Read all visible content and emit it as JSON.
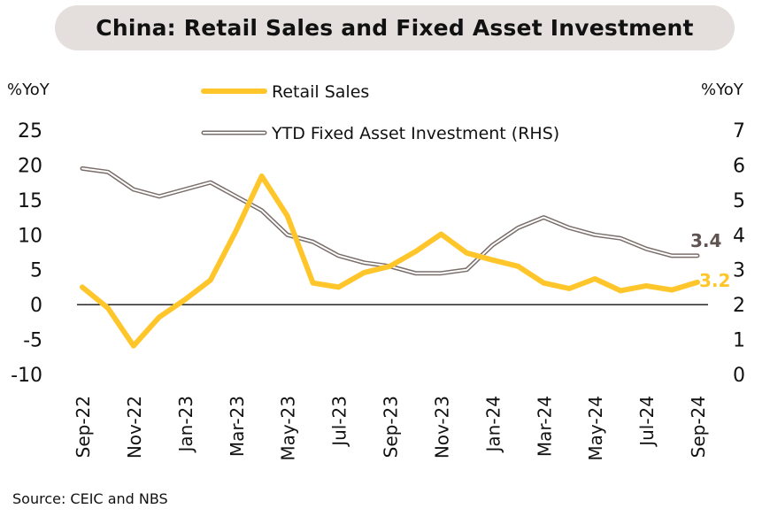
{
  "title": "China: Retail Sales and Fixed Asset Investment",
  "source": "Source: CEIC and NBS",
  "chart_data": {
    "type": "line",
    "left_axis": {
      "unit": "%YoY",
      "ticks": [
        25,
        20,
        15,
        10,
        5,
        0,
        -5,
        -10
      ],
      "ylim": [
        -10,
        25
      ]
    },
    "right_axis": {
      "unit": "%YoY",
      "ticks": [
        7,
        6,
        5,
        4,
        3,
        2,
        1,
        0
      ],
      "ylim": [
        0,
        7
      ]
    },
    "x": [
      "Sep-22",
      "Oct-22",
      "Nov-22",
      "Dec-22",
      "Jan-23",
      "Feb-23",
      "Mar-23",
      "Apr-23",
      "May-23",
      "Jun-23",
      "Jul-23",
      "Aug-23",
      "Sep-23",
      "Oct-23",
      "Nov-23",
      "Dec-23",
      "Jan-24",
      "Feb-24",
      "Mar-24",
      "Apr-24",
      "May-24",
      "Jun-24",
      "Jul-24",
      "Aug-24",
      "Sep-24"
    ],
    "x_tick_labels": [
      "Sep-22",
      "Nov-22",
      "Jan-23",
      "Mar-23",
      "May-23",
      "Jul-23",
      "Sep-23",
      "Nov-23",
      "Jan-24",
      "Mar-24",
      "May-24",
      "Jul-24",
      "Sep-24"
    ],
    "series": [
      {
        "name": "Retail Sales",
        "axis": "left",
        "color": "#ffc62b",
        "values": [
          2.5,
          -0.5,
          -5.9,
          -1.8,
          0.7,
          3.5,
          10.6,
          18.4,
          12.7,
          3.1,
          2.5,
          4.6,
          5.5,
          7.6,
          10.1,
          7.4,
          6.4,
          5.5,
          3.1,
          2.3,
          3.7,
          2.0,
          2.7,
          2.1,
          3.2
        ],
        "end_label": "3.2"
      },
      {
        "name": "YTD Fixed Asset Investment (RHS)",
        "axis": "right",
        "color": "#7a6e6a",
        "values": [
          5.9,
          5.8,
          5.3,
          5.1,
          5.3,
          5.5,
          5.1,
          4.7,
          4.0,
          3.8,
          3.4,
          3.2,
          3.1,
          2.9,
          2.9,
          3.0,
          3.7,
          4.2,
          4.5,
          4.2,
          4.0,
          3.9,
          3.6,
          3.4,
          3.4
        ],
        "end_label": "3.4"
      }
    ]
  }
}
